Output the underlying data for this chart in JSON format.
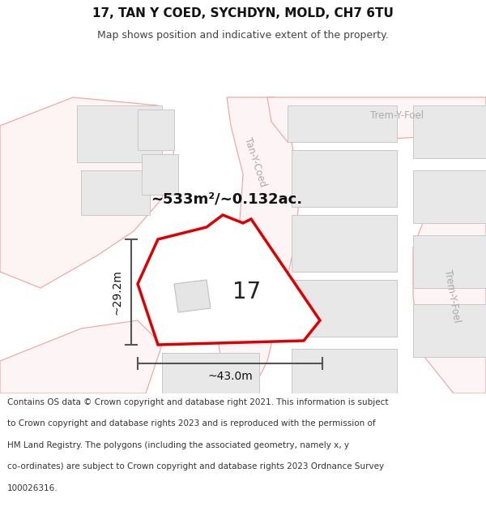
{
  "title": "17, TAN Y COED, SYCHDYN, MOLD, CH7 6TU",
  "subtitle": "Map shows position and indicative extent of the property.",
  "footer_lines": [
    "Contains OS data © Crown copyright and database right 2021. This information is subject",
    "to Crown copyright and database rights 2023 and is reproduced with the permission of",
    "HM Land Registry. The polygons (including the associated geometry, namely x, y",
    "co-ordinates) are subject to Crown copyright and database rights 2023 Ordnance Survey",
    "100026316."
  ],
  "area_label": "~533m²/~0.132ac.",
  "width_label": "~43.0m",
  "height_label": "~29.2m",
  "property_number": "17",
  "bg_color": "#f8f8f8",
  "road_line_color": "#f0a0a0",
  "road_fill_color": "#fae8e8",
  "building_fill": "#e8e8e8",
  "building_edge": "#c8c8c8",
  "road_label_color": "#aaaaaa",
  "highlight_color": "#dd0000",
  "dim_color": "#555555",
  "title_color": "#111111",
  "subtitle_color": "#444444",
  "footer_color": "#333333",
  "title_fontsize": 11,
  "subtitle_fontsize": 9,
  "area_fontsize": 13,
  "number_fontsize": 20,
  "dim_fontsize": 10,
  "road_label_fontsize": 8.5,
  "footer_fontsize": 7.5
}
